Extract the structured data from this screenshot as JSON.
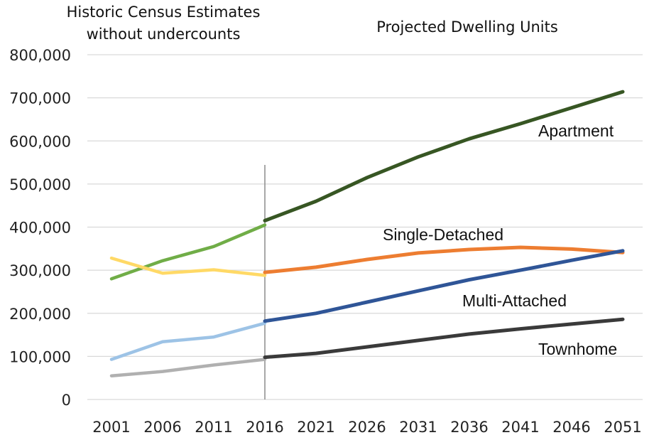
{
  "chart_data": {
    "type": "line",
    "headings": {
      "historic_line1": "Historic Census Estimates",
      "historic_line2": "without undercounts",
      "projected": "Projected Dwelling Units"
    },
    "y_ticks": [
      "0",
      "100,000",
      "200,000",
      "300,000",
      "400,000",
      "500,000",
      "600,000",
      "700,000",
      "800,000"
    ],
    "ylim": [
      0,
      800000
    ],
    "x": [
      2001,
      2006,
      2011,
      2016,
      2021,
      2026,
      2031,
      2036,
      2041,
      2046,
      2051
    ],
    "x_tick_labels": [
      "2001",
      "2006",
      "2011",
      "2016",
      "2021",
      "2026",
      "2031",
      "2036",
      "2041",
      "2046",
      "2051"
    ],
    "divider_x": 2016,
    "grid": "horizontal",
    "series": [
      {
        "name": "Apartment",
        "historic_color": "#70ad47",
        "projected_color": "#375623",
        "historic": [
          [
            2001,
            280000
          ],
          [
            2006,
            322000
          ],
          [
            2011,
            355000
          ],
          [
            2016,
            405000
          ]
        ],
        "projected": [
          [
            2016,
            415000
          ],
          [
            2021,
            460000
          ],
          [
            2026,
            515000
          ],
          [
            2031,
            563000
          ],
          [
            2036,
            605000
          ],
          [
            2041,
            640000
          ],
          [
            2046,
            677000
          ],
          [
            2051,
            714000
          ]
        ]
      },
      {
        "name": "Single-Detached",
        "historic_color": "#ffd966",
        "projected_color": "#ed7d31",
        "historic": [
          [
            2001,
            328000
          ],
          [
            2006,
            293000
          ],
          [
            2011,
            301000
          ],
          [
            2016,
            288000
          ]
        ],
        "projected": [
          [
            2016,
            295000
          ],
          [
            2021,
            307000
          ],
          [
            2026,
            325000
          ],
          [
            2031,
            340000
          ],
          [
            2036,
            348000
          ],
          [
            2041,
            353000
          ],
          [
            2046,
            349000
          ],
          [
            2051,
            341000
          ]
        ]
      },
      {
        "name": "Multi-Attached",
        "historic_color": "#9dc3e6",
        "projected_color": "#2f5597",
        "historic": [
          [
            2001,
            93000
          ],
          [
            2006,
            134000
          ],
          [
            2011,
            145000
          ],
          [
            2016,
            177000
          ]
        ],
        "projected": [
          [
            2016,
            182000
          ],
          [
            2021,
            200000
          ],
          [
            2026,
            226000
          ],
          [
            2031,
            252000
          ],
          [
            2036,
            278000
          ],
          [
            2041,
            300000
          ],
          [
            2046,
            323000
          ],
          [
            2051,
            345000
          ]
        ]
      },
      {
        "name": "Townhome",
        "historic_color": "#b0b0b0",
        "projected_color": "#3a3a3a",
        "historic": [
          [
            2001,
            55000
          ],
          [
            2006,
            65000
          ],
          [
            2011,
            80000
          ],
          [
            2016,
            93000
          ]
        ],
        "projected": [
          [
            2016,
            98000
          ],
          [
            2021,
            107000
          ],
          [
            2026,
            122000
          ],
          [
            2031,
            137000
          ],
          [
            2036,
            152000
          ],
          [
            2041,
            164000
          ],
          [
            2046,
            175000
          ],
          [
            2051,
            186000
          ]
        ]
      }
    ]
  }
}
